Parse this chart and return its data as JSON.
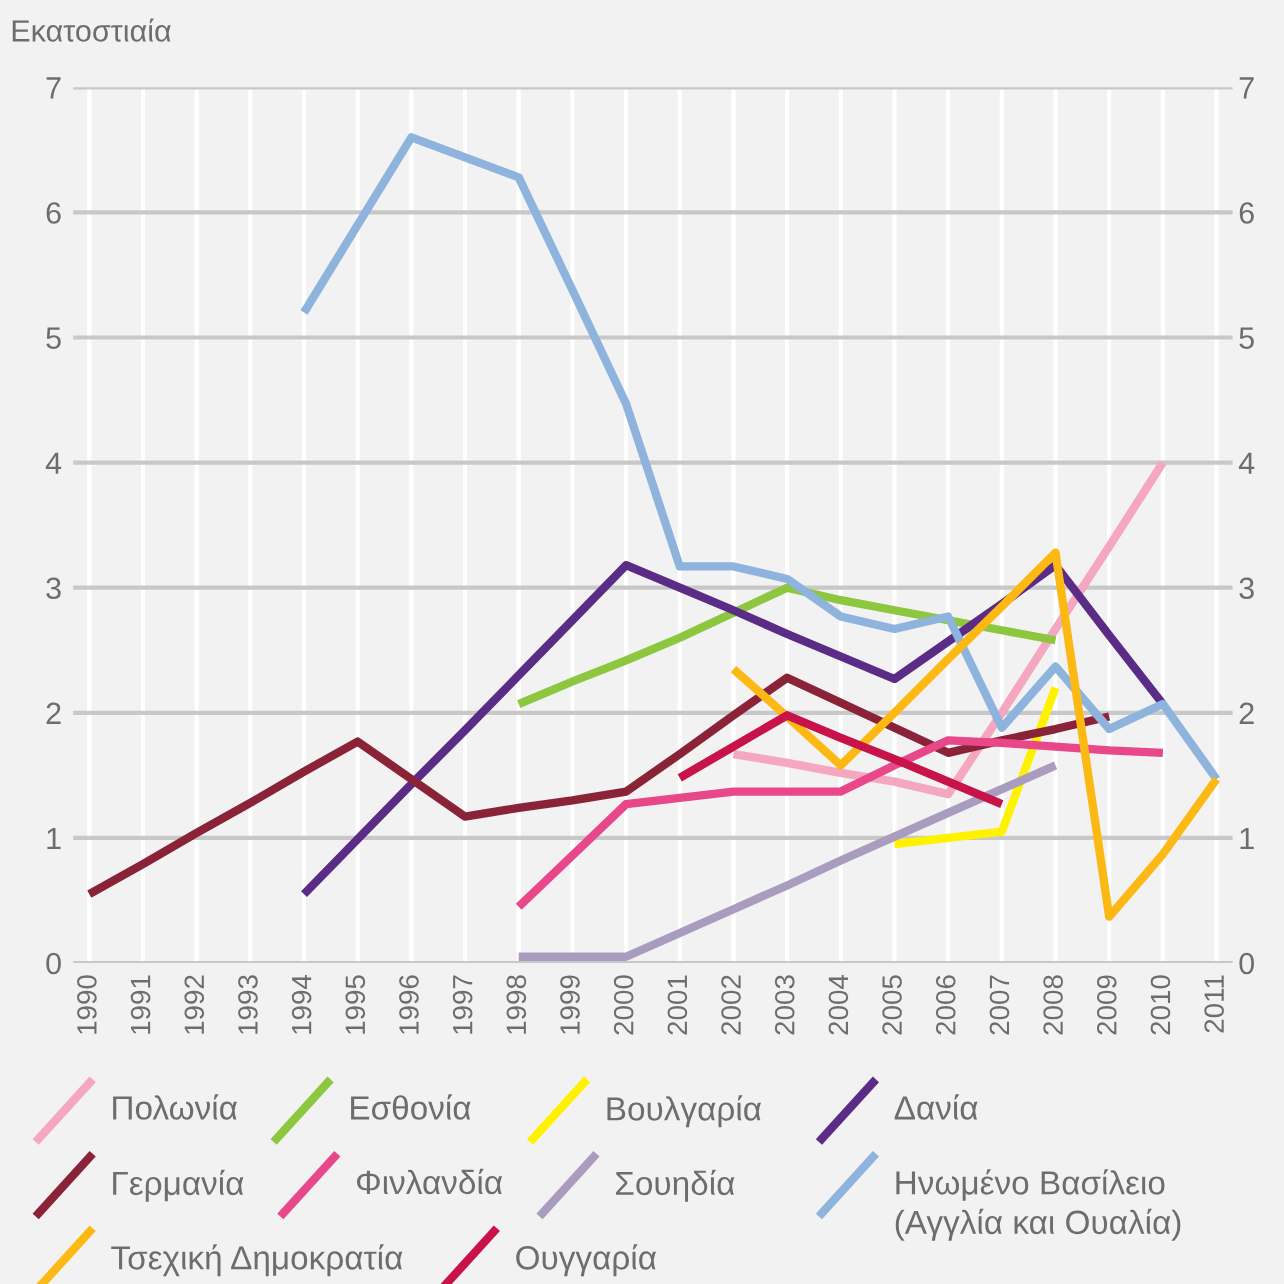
{
  "chart_data": {
    "type": "line",
    "ylabel": "Εκατοστιαία",
    "categories": [
      "1990",
      "1991",
      "1992",
      "1993",
      "1994",
      "1995",
      "1996",
      "1997",
      "1998",
      "1999",
      "2000",
      "2001",
      "2002",
      "2003",
      "2004",
      "2005",
      "2006",
      "2007",
      "2008",
      "2009",
      "2010",
      "2011"
    ],
    "series": [
      {
        "name": "Πολωνία",
        "color": "#f4a7bf",
        "values": [
          null,
          null,
          null,
          null,
          null,
          null,
          null,
          null,
          null,
          null,
          null,
          null,
          1.67,
          1.6,
          1.52,
          1.45,
          1.35,
          2.0,
          2.67,
          3.33,
          4.0,
          null
        ]
      },
      {
        "name": "Εσθονία",
        "color": "#8dc63f",
        "values": [
          null,
          null,
          null,
          null,
          null,
          null,
          null,
          null,
          2.07,
          2.25,
          2.42,
          2.6,
          2.8,
          3.0,
          2.9,
          2.82,
          2.74,
          2.66,
          2.58,
          null,
          null,
          null
        ]
      },
      {
        "name": "Βουλγαρία",
        "color": "#fff200",
        "values": [
          null,
          null,
          null,
          null,
          null,
          null,
          null,
          null,
          null,
          null,
          null,
          null,
          null,
          null,
          null,
          0.95,
          1.0,
          1.05,
          2.2,
          null,
          null,
          null
        ]
      },
      {
        "name": "Δανία",
        "color": "#5b2c86",
        "values": [
          null,
          null,
          null,
          null,
          0.55,
          0.99,
          1.43,
          1.86,
          2.3,
          2.74,
          3.18,
          3.0,
          2.82,
          2.63,
          2.45,
          2.27,
          2.57,
          2.87,
          3.18,
          2.62,
          2.07,
          null
        ]
      },
      {
        "name": "Γερμανία",
        "color": "#8b2338",
        "values": [
          0.55,
          0.79,
          1.04,
          1.28,
          1.53,
          1.77,
          1.47,
          1.17,
          1.24,
          1.3,
          1.37,
          1.67,
          1.98,
          2.28,
          2.08,
          1.88,
          1.68,
          1.78,
          1.87,
          1.97,
          null,
          null
        ]
      },
      {
        "name": "Φινλανδία",
        "color": "#e8488a",
        "values": [
          null,
          null,
          null,
          null,
          null,
          null,
          null,
          null,
          0.45,
          0.86,
          1.27,
          1.32,
          1.37,
          1.37,
          1.37,
          1.58,
          1.78,
          1.76,
          1.73,
          1.7,
          1.68,
          null
        ]
      },
      {
        "name": "Σουηδία",
        "color": "#a99cbf",
        "values": [
          null,
          null,
          null,
          null,
          null,
          null,
          null,
          null,
          0.05,
          0.05,
          0.05,
          0.24,
          0.43,
          0.62,
          0.82,
          1.01,
          1.2,
          1.39,
          1.58,
          null,
          null,
          null
        ]
      },
      {
        "name": "Ηνωμένο Βασίλειο\n(Αγγλία και Ουαλία)",
        "color": "#8eb4de",
        "values": [
          null,
          null,
          null,
          null,
          5.2,
          5.9,
          6.6,
          6.44,
          6.28,
          5.38,
          4.47,
          3.17,
          3.17,
          3.07,
          2.77,
          2.67,
          2.77,
          1.88,
          2.37,
          1.87,
          2.07,
          1.47
        ]
      },
      {
        "name": "Τσεχική Δημοκρατία",
        "color": "#fdb913",
        "values": [
          null,
          null,
          null,
          null,
          null,
          null,
          null,
          null,
          null,
          null,
          null,
          null,
          2.35,
          1.97,
          1.58,
          2.0,
          2.43,
          2.85,
          3.28,
          0.37,
          0.87,
          1.47
        ]
      },
      {
        "name": "Ουγγαρία",
        "color": "#c8134a",
        "values": [
          null,
          null,
          null,
          null,
          null,
          null,
          null,
          null,
          null,
          null,
          null,
          1.48,
          1.73,
          1.98,
          1.8,
          1.63,
          1.45,
          1.27,
          null,
          null,
          null,
          null
        ]
      }
    ],
    "ylim": [
      0,
      7
    ],
    "yticks": [
      0,
      1,
      2,
      3,
      4,
      5,
      6,
      7
    ],
    "y2lim": [
      0,
      7
    ],
    "y2ticks": [
      0,
      1,
      2,
      3,
      4,
      5,
      6,
      7
    ],
    "grid": true,
    "legend": "bottom",
    "marker": "none",
    "line_style": "solid"
  }
}
